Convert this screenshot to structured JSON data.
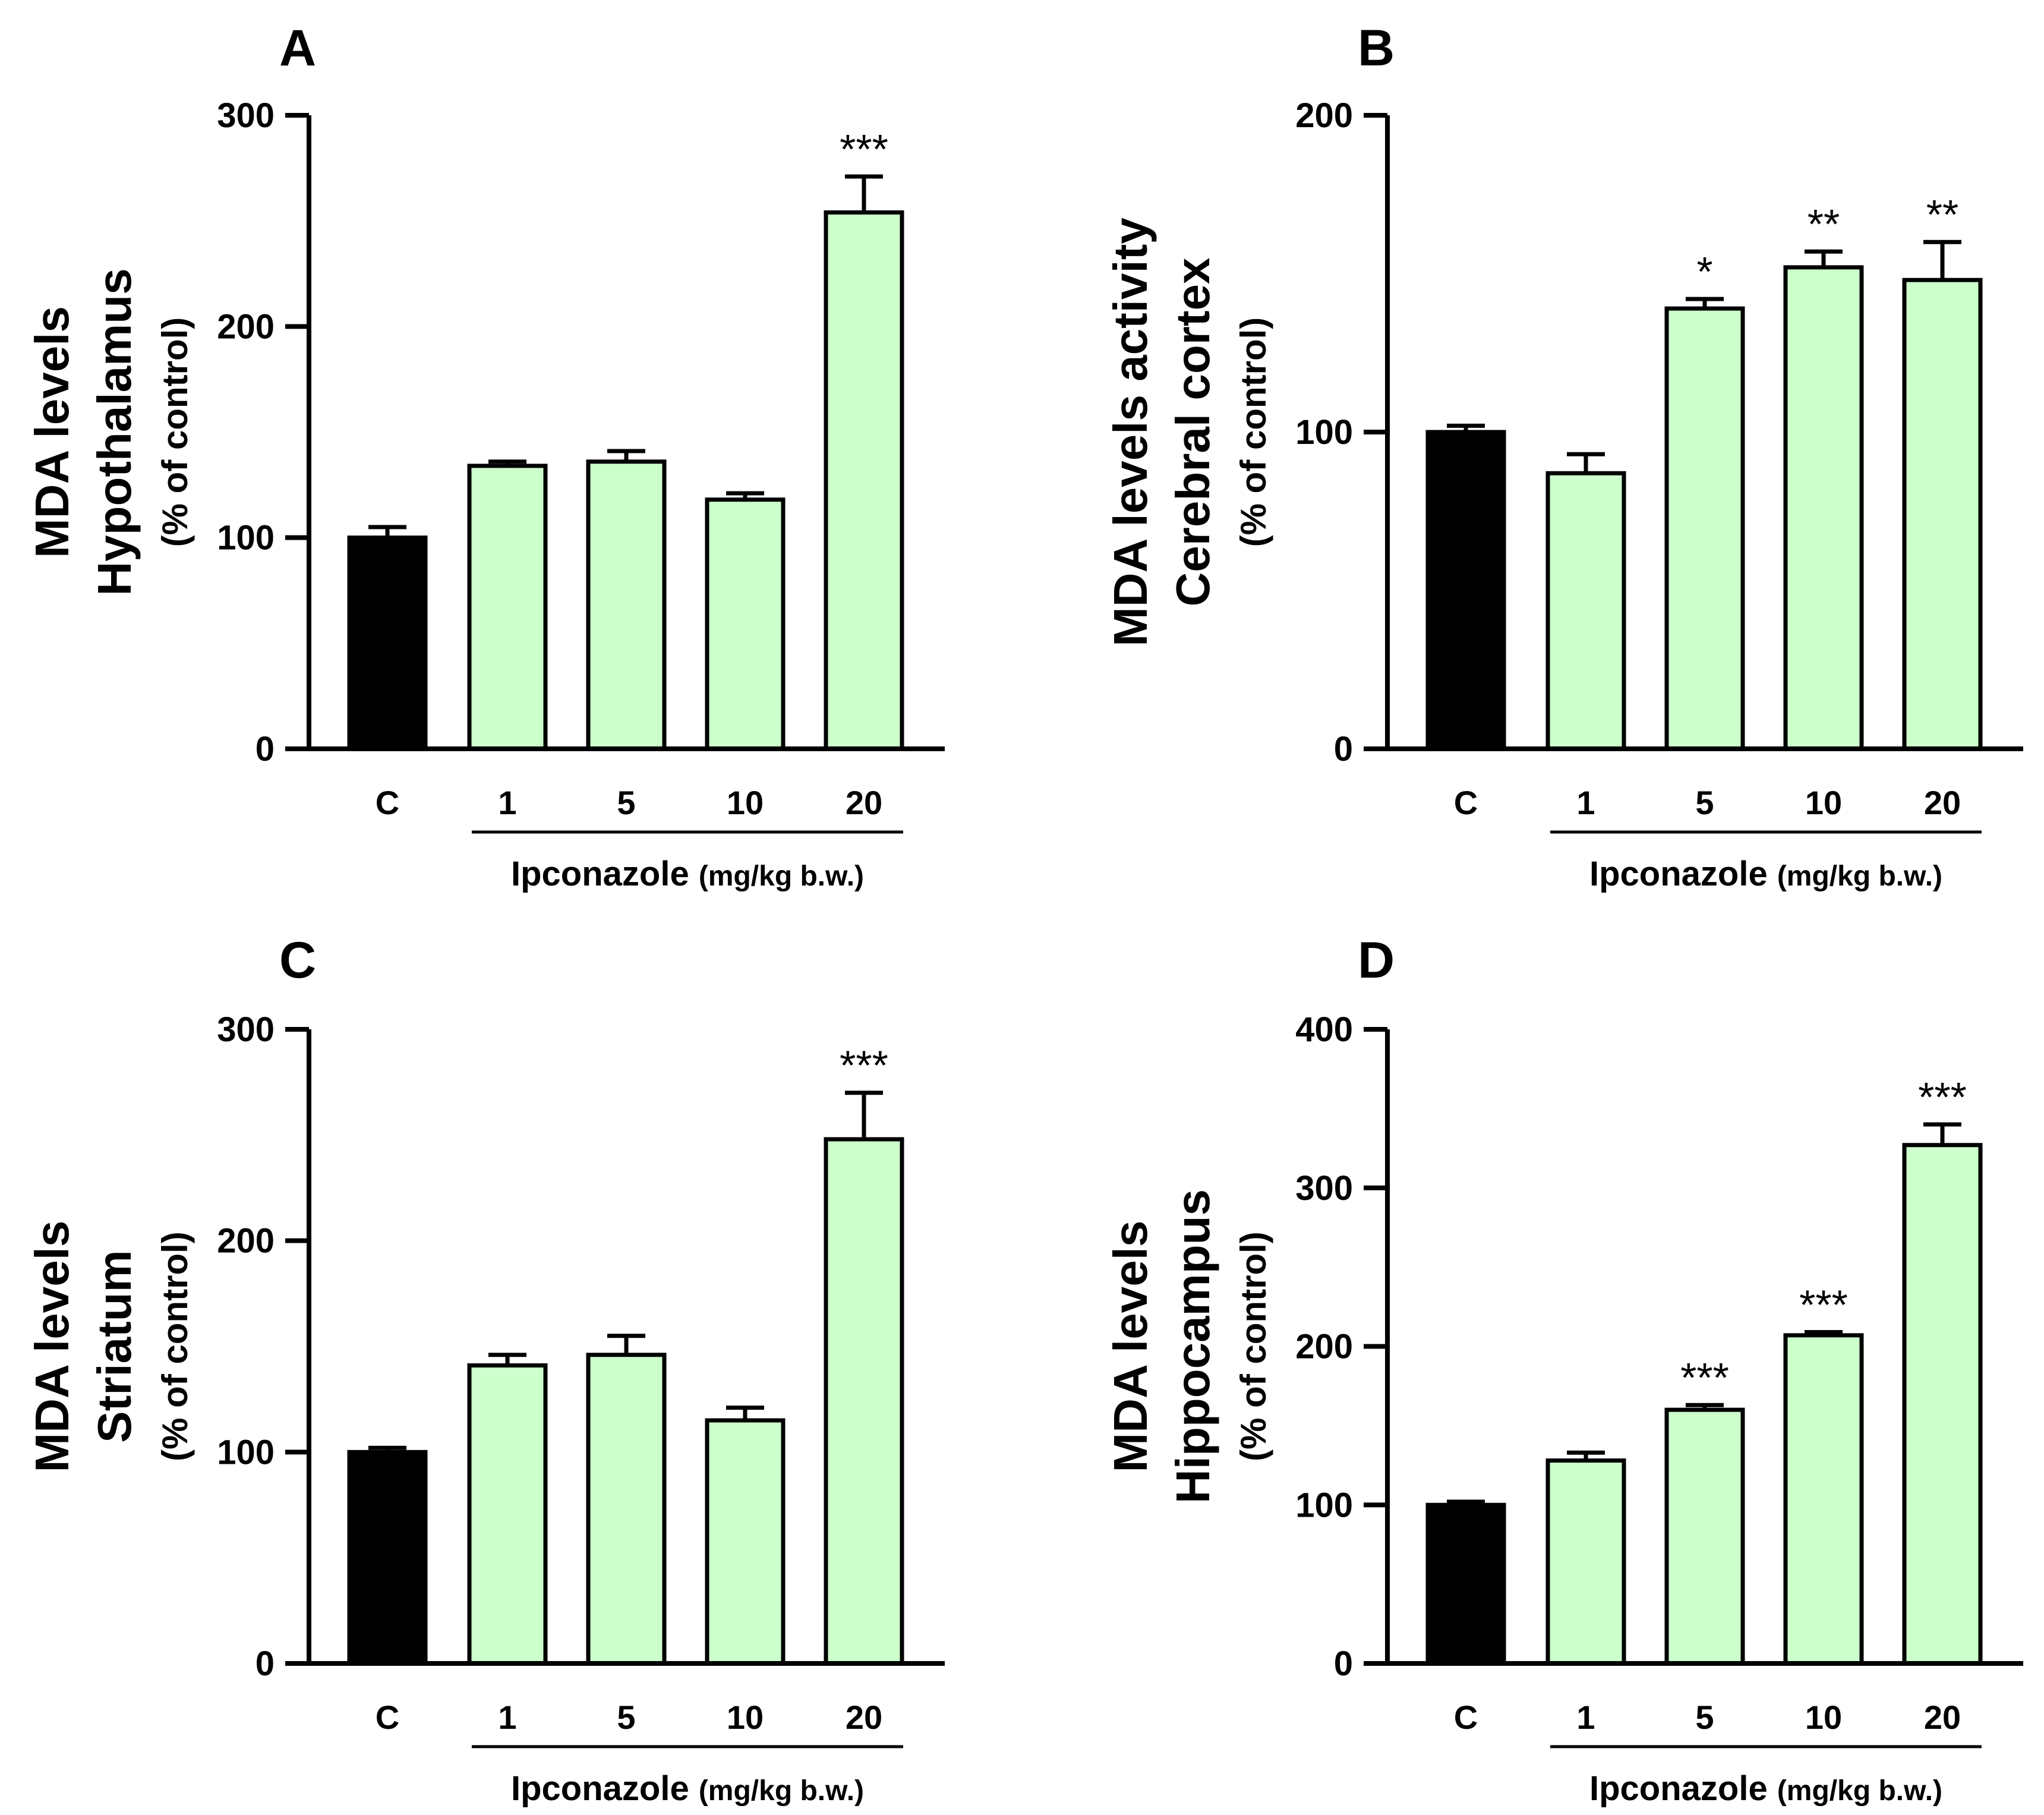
{
  "chart_data": [
    {
      "type": "bar",
      "panel": "A",
      "ylabel_lines": [
        "MDA levels",
        "Hypothalamus",
        "(% of control)"
      ],
      "xlabel": "Ipconazole",
      "xlabel_unit": "(mg/kg b.w.)",
      "categories": [
        "C",
        "1",
        "5",
        "10",
        "20"
      ],
      "values": [
        100,
        134,
        136,
        118,
        254
      ],
      "errors": [
        5,
        2,
        5,
        3,
        17
      ],
      "significance": [
        "",
        "",
        "",
        "",
        "***"
      ],
      "ylim": [
        0,
        300
      ],
      "yticks": [
        0,
        100,
        200,
        300
      ],
      "colors": [
        "#000000",
        "#ccffcc",
        "#ccffcc",
        "#ccffcc",
        "#ccffcc"
      ]
    },
    {
      "type": "bar",
      "panel": "B",
      "ylabel_lines": [
        "MDA levels activity",
        "Cerebral cortex",
        "(% of control)"
      ],
      "xlabel": "Ipconazole",
      "xlabel_unit": "(mg/kg b.w.)",
      "categories": [
        "C",
        "1",
        "5",
        "10",
        "20"
      ],
      "values": [
        100,
        87,
        139,
        152,
        148
      ],
      "errors": [
        2,
        6,
        3,
        5,
        12
      ],
      "significance": [
        "",
        "",
        "*",
        "**",
        "**"
      ],
      "ylim": [
        0,
        200
      ],
      "yticks": [
        0,
        100,
        200
      ],
      "colors": [
        "#000000",
        "#ccffcc",
        "#ccffcc",
        "#ccffcc",
        "#ccffcc"
      ]
    },
    {
      "type": "bar",
      "panel": "C",
      "ylabel_lines": [
        "MDA levels",
        "Striatum",
        "(% of control)"
      ],
      "xlabel": "Ipconazole",
      "xlabel_unit": "(mg/kg b.w.)",
      "categories": [
        "C",
        "1",
        "5",
        "10",
        "20"
      ],
      "values": [
        100,
        141,
        146,
        115,
        248
      ],
      "errors": [
        2,
        5,
        9,
        6,
        22
      ],
      "significance": [
        "",
        "",
        "",
        "",
        "***"
      ],
      "ylim": [
        0,
        300
      ],
      "yticks": [
        0,
        100,
        200,
        300
      ],
      "colors": [
        "#000000",
        "#ccffcc",
        "#ccffcc",
        "#ccffcc",
        "#ccffcc"
      ]
    },
    {
      "type": "bar",
      "panel": "D",
      "ylabel_lines": [
        "MDA levels",
        "Hippocampus",
        "(% of control)"
      ],
      "xlabel": "Ipconazole",
      "xlabel_unit": "(mg/kg b.w.)",
      "categories": [
        "C",
        "1",
        "5",
        "10",
        "20"
      ],
      "values": [
        100,
        128,
        160,
        207,
        327
      ],
      "errors": [
        2,
        5,
        3,
        2,
        13
      ],
      "significance": [
        "",
        "",
        "***",
        "***",
        "***"
      ],
      "ylim": [
        0,
        400
      ],
      "yticks": [
        0,
        100,
        200,
        300,
        400
      ],
      "colors": [
        "#000000",
        "#ccffcc",
        "#ccffcc",
        "#ccffcc",
        "#ccffcc"
      ]
    }
  ]
}
